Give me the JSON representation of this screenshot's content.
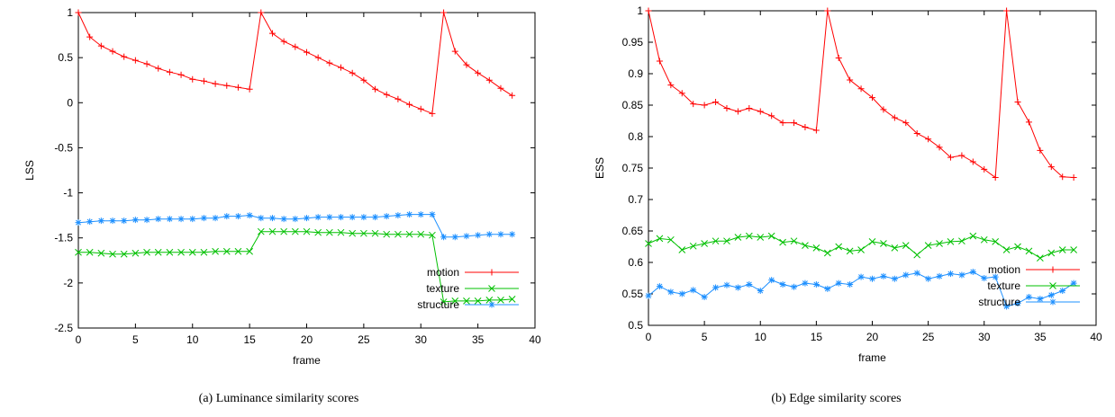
{
  "chart_data": [
    {
      "type": "line",
      "caption": "(a) Luminance similarity scores",
      "xlabel": "frame",
      "ylabel": "LSS",
      "xlim": [
        0,
        40
      ],
      "ylim": [
        -2.5,
        1
      ],
      "xticks": [
        0,
        5,
        10,
        15,
        20,
        25,
        30,
        35,
        40
      ],
      "yticks": [
        -2.5,
        -2,
        -1.5,
        -1,
        -0.5,
        0,
        0.5,
        1
      ],
      "grid": false,
      "legend_position": "bottom-right",
      "series": [
        {
          "name": "motion",
          "color": "#ff0000",
          "marker": "plus",
          "x": [
            0,
            1,
            2,
            3,
            4,
            5,
            6,
            7,
            8,
            9,
            10,
            11,
            12,
            13,
            14,
            15,
            16,
            17,
            18,
            19,
            20,
            21,
            22,
            23,
            24,
            25,
            26,
            27,
            28,
            29,
            30,
            31,
            32,
            33,
            34,
            35,
            36,
            37,
            38
          ],
          "y": [
            1.0,
            0.73,
            0.63,
            0.57,
            0.51,
            0.47,
            0.43,
            0.38,
            0.34,
            0.31,
            0.26,
            0.24,
            0.21,
            0.19,
            0.17,
            0.15,
            1.0,
            0.77,
            0.68,
            0.62,
            0.56,
            0.5,
            0.44,
            0.39,
            0.33,
            0.25,
            0.15,
            0.09,
            0.04,
            -0.02,
            -0.07,
            -0.12,
            1.0,
            0.57,
            0.42,
            0.33,
            0.25,
            0.16,
            0.08
          ]
        },
        {
          "name": "texture",
          "color": "#00c000",
          "marker": "x",
          "x": [
            0,
            1,
            2,
            3,
            4,
            5,
            6,
            7,
            8,
            9,
            10,
            11,
            12,
            13,
            14,
            15,
            16,
            17,
            18,
            19,
            20,
            21,
            22,
            23,
            24,
            25,
            26,
            27,
            28,
            29,
            30,
            31,
            32,
            33,
            34,
            35,
            36,
            37,
            38
          ],
          "y": [
            -1.66,
            -1.66,
            -1.67,
            -1.68,
            -1.68,
            -1.67,
            -1.66,
            -1.66,
            -1.66,
            -1.66,
            -1.66,
            -1.66,
            -1.65,
            -1.65,
            -1.65,
            -1.65,
            -1.43,
            -1.43,
            -1.43,
            -1.43,
            -1.43,
            -1.44,
            -1.44,
            -1.44,
            -1.45,
            -1.45,
            -1.45,
            -1.46,
            -1.46,
            -1.46,
            -1.46,
            -1.47,
            -2.21,
            -2.2,
            -2.2,
            -2.2,
            -2.19,
            -2.19,
            -2.18
          ]
        },
        {
          "name": "structure",
          "color": "#1e90ff",
          "marker": "star",
          "x": [
            0,
            1,
            2,
            3,
            4,
            5,
            6,
            7,
            8,
            9,
            10,
            11,
            12,
            13,
            14,
            15,
            16,
            17,
            18,
            19,
            20,
            21,
            22,
            23,
            24,
            25,
            26,
            27,
            28,
            29,
            30,
            31,
            32,
            33,
            34,
            35,
            36,
            37,
            38
          ],
          "y": [
            -1.33,
            -1.32,
            -1.31,
            -1.31,
            -1.31,
            -1.3,
            -1.3,
            -1.29,
            -1.29,
            -1.29,
            -1.29,
            -1.28,
            -1.28,
            -1.26,
            -1.26,
            -1.25,
            -1.28,
            -1.28,
            -1.29,
            -1.29,
            -1.28,
            -1.27,
            -1.27,
            -1.27,
            -1.27,
            -1.27,
            -1.27,
            -1.26,
            -1.25,
            -1.24,
            -1.24,
            -1.24,
            -1.49,
            -1.49,
            -1.48,
            -1.47,
            -1.46,
            -1.46,
            -1.46
          ]
        }
      ]
    },
    {
      "type": "line",
      "caption": "(b) Edge similarity scores",
      "xlabel": "frame",
      "ylabel": "ESS",
      "xlim": [
        0,
        40
      ],
      "ylim": [
        0.5,
        1
      ],
      "xticks": [
        0,
        5,
        10,
        15,
        20,
        25,
        30,
        35,
        40
      ],
      "yticks": [
        0.5,
        0.55,
        0.6,
        0.65,
        0.7,
        0.75,
        0.8,
        0.85,
        0.9,
        0.95,
        1
      ],
      "grid": false,
      "legend_position": "bottom-right",
      "series": [
        {
          "name": "motion",
          "color": "#ff0000",
          "marker": "plus",
          "x": [
            0,
            1,
            2,
            3,
            4,
            5,
            6,
            7,
            8,
            9,
            10,
            11,
            12,
            13,
            14,
            15,
            16,
            17,
            18,
            19,
            20,
            21,
            22,
            23,
            24,
            25,
            26,
            27,
            28,
            29,
            30,
            31,
            32,
            33,
            34,
            35,
            36,
            37,
            38
          ],
          "y": [
            1.0,
            0.92,
            0.882,
            0.869,
            0.852,
            0.85,
            0.855,
            0.845,
            0.84,
            0.845,
            0.84,
            0.833,
            0.822,
            0.822,
            0.815,
            0.81,
            1.0,
            0.925,
            0.89,
            0.876,
            0.862,
            0.843,
            0.83,
            0.822,
            0.805,
            0.796,
            0.783,
            0.767,
            0.77,
            0.76,
            0.748,
            0.735,
            1.0,
            0.855,
            0.823,
            0.778,
            0.752,
            0.736,
            0.735
          ]
        },
        {
          "name": "texture",
          "color": "#00c000",
          "marker": "x",
          "x": [
            0,
            1,
            2,
            3,
            4,
            5,
            6,
            7,
            8,
            9,
            10,
            11,
            12,
            13,
            14,
            15,
            16,
            17,
            18,
            19,
            20,
            21,
            22,
            23,
            24,
            25,
            26,
            27,
            28,
            29,
            30,
            31,
            32,
            33,
            34,
            35,
            36,
            37,
            38
          ],
          "y": [
            0.63,
            0.638,
            0.636,
            0.62,
            0.626,
            0.63,
            0.634,
            0.634,
            0.64,
            0.642,
            0.64,
            0.642,
            0.632,
            0.634,
            0.627,
            0.623,
            0.615,
            0.625,
            0.618,
            0.62,
            0.633,
            0.63,
            0.623,
            0.627,
            0.612,
            0.627,
            0.63,
            0.633,
            0.634,
            0.642,
            0.636,
            0.633,
            0.62,
            0.625,
            0.618,
            0.607,
            0.615,
            0.62,
            0.62
          ]
        },
        {
          "name": "structure",
          "color": "#1e90ff",
          "marker": "star",
          "x": [
            0,
            1,
            2,
            3,
            4,
            5,
            6,
            7,
            8,
            9,
            10,
            11,
            12,
            13,
            14,
            15,
            16,
            17,
            18,
            19,
            20,
            21,
            22,
            23,
            24,
            25,
            26,
            27,
            28,
            29,
            30,
            31,
            32,
            33,
            34,
            35,
            36,
            37,
            38
          ],
          "y": [
            0.547,
            0.562,
            0.553,
            0.55,
            0.556,
            0.545,
            0.56,
            0.564,
            0.56,
            0.565,
            0.555,
            0.572,
            0.565,
            0.561,
            0.567,
            0.565,
            0.558,
            0.567,
            0.565,
            0.577,
            0.574,
            0.578,
            0.574,
            0.58,
            0.583,
            0.574,
            0.578,
            0.582,
            0.58,
            0.585,
            0.575,
            0.577,
            0.53,
            0.535,
            0.545,
            0.542,
            0.548,
            0.555,
            0.567
          ]
        }
      ]
    }
  ]
}
